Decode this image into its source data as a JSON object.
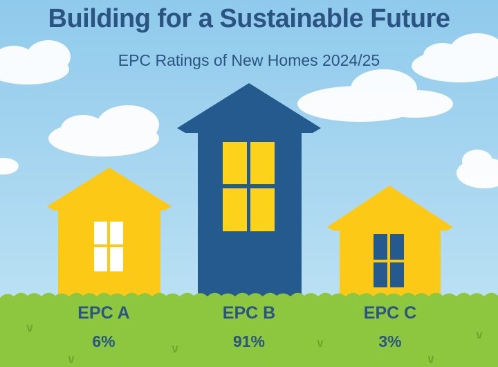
{
  "title": "Building for a Sustainable Future",
  "subtitle": "EPC Ratings of New Homes 2024/25",
  "colors": {
    "text": "#2b5482",
    "sky": "#aed8f0",
    "grass": "#8dc63f",
    "yellow_house": "#fcc917",
    "blue_house": "#255a8f",
    "window_light": "#ffffff",
    "window_yellow": "#fcd31a",
    "window_dark": "#255a8f",
    "cloud": "#ffffff"
  },
  "chart_data": {
    "type": "bar",
    "categories": [
      "EPC A",
      "EPC B",
      "EPC C"
    ],
    "values": [
      6,
      91,
      3
    ],
    "value_labels": [
      "6%",
      "91%",
      "3%"
    ],
    "unit": "%",
    "title": "Building for a Sustainable Future",
    "subtitle": "EPC Ratings of New Homes 2024/25",
    "bar_style": "house-shaped bars"
  }
}
